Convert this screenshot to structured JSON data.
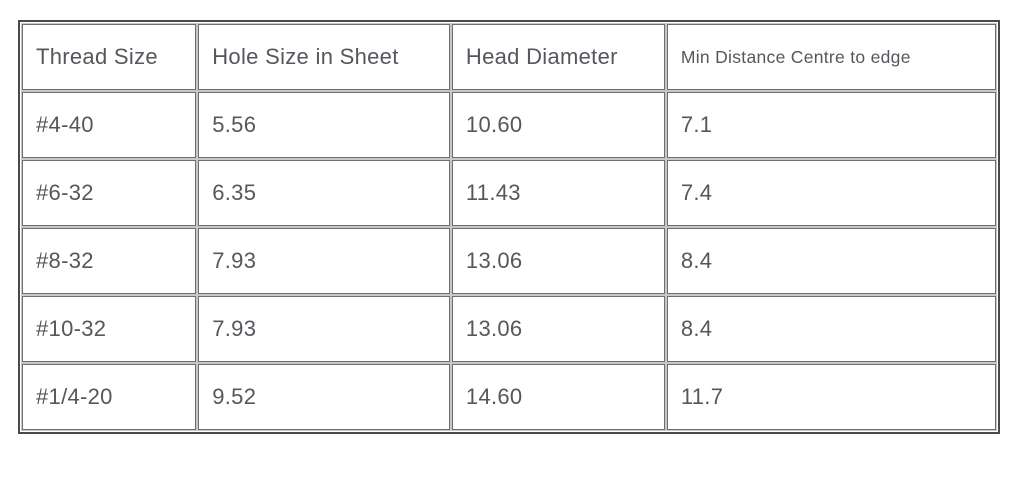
{
  "chart_data": {
    "type": "table",
    "columns": [
      "Thread Size",
      "Hole Size in Sheet",
      "Head Diameter",
      "Min Distance Centre to edge"
    ],
    "rows": [
      [
        "#4-40",
        "5.56",
        "10.60",
        "7.1"
      ],
      [
        "#6-32",
        "6.35",
        "11.43",
        "7.4"
      ],
      [
        "#8-32",
        "7.93",
        "13.06",
        "8.4"
      ],
      [
        "#10-32",
        "7.93",
        "13.06",
        "8.4"
      ],
      [
        "#1/4-20",
        "9.52",
        "14.60",
        "11.7"
      ]
    ]
  },
  "table": {
    "headers": {
      "thread_size": "Thread Size",
      "hole_size": "Hole Size in Sheet",
      "head_diameter": "Head Diameter",
      "min_distance": "Min Distance Centre to edge"
    },
    "rows": [
      [
        "#4-40",
        "5.56",
        "10.60",
        "7.1"
      ],
      [
        "#6-32",
        "6.35",
        "11.43",
        "7.4"
      ],
      [
        "#8-32",
        "7.93",
        "13.06",
        "8.4"
      ],
      [
        "#10-32",
        "7.93",
        "13.06",
        "8.4"
      ],
      [
        "#1/4-20",
        "9.52",
        "14.60",
        "11.7"
      ]
    ]
  },
  "colors": {
    "text": "#54575c",
    "outer_border": "#4a4a4a",
    "cell_border": "#6e6e6e",
    "cell_outline": "#c8c8c8",
    "background": "#ffffff"
  }
}
